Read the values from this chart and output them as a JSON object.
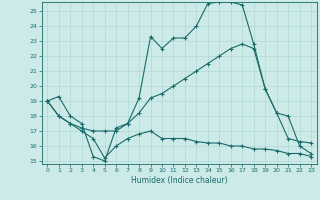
{
  "xlabel": "Humidex (Indice chaleur)",
  "bg_color": "#cceae8",
  "line_color": "#1a6b6b",
  "grid_color": "#b0d8d4",
  "xlim": [
    -0.5,
    23.5
  ],
  "ylim": [
    14.8,
    25.6
  ],
  "yticks": [
    15,
    16,
    17,
    18,
    19,
    20,
    21,
    22,
    23,
    24,
    25
  ],
  "xticks": [
    0,
    1,
    2,
    3,
    4,
    5,
    6,
    7,
    8,
    9,
    10,
    11,
    12,
    13,
    14,
    15,
    16,
    17,
    18,
    19,
    20,
    21,
    22,
    23
  ],
  "series1_x": [
    0,
    1,
    2,
    3,
    4,
    5,
    6,
    7,
    8,
    9,
    10,
    11,
    12,
    13,
    14,
    15,
    16,
    17,
    18,
    19,
    20,
    21,
    22,
    23
  ],
  "series1_y": [
    19.0,
    19.3,
    18.0,
    17.5,
    15.3,
    15.0,
    17.2,
    17.5,
    19.2,
    23.3,
    22.5,
    23.2,
    23.2,
    24.0,
    25.5,
    25.6,
    25.6,
    25.4,
    22.8,
    19.8,
    18.2,
    16.5,
    16.3,
    16.2
  ],
  "series2_x": [
    0,
    1,
    2,
    3,
    4,
    5,
    6,
    7,
    8,
    9,
    10,
    11,
    12,
    13,
    14,
    15,
    16,
    17,
    18,
    19,
    20,
    21,
    22,
    23
  ],
  "series2_y": [
    19.0,
    18.0,
    17.5,
    17.2,
    17.0,
    17.0,
    17.0,
    17.5,
    18.2,
    19.2,
    19.5,
    20.0,
    20.5,
    21.0,
    21.5,
    22.0,
    22.5,
    22.8,
    22.5,
    19.8,
    18.2,
    18.0,
    16.0,
    15.5
  ],
  "series3_x": [
    0,
    1,
    2,
    3,
    4,
    5,
    6,
    7,
    8,
    9,
    10,
    11,
    12,
    13,
    14,
    15,
    16,
    17,
    18,
    19,
    20,
    21,
    22,
    23
  ],
  "series3_y": [
    19.0,
    18.0,
    17.5,
    17.0,
    16.5,
    15.2,
    16.0,
    16.5,
    16.8,
    17.0,
    16.5,
    16.5,
    16.5,
    16.3,
    16.2,
    16.2,
    16.0,
    16.0,
    15.8,
    15.8,
    15.7,
    15.5,
    15.5,
    15.3
  ]
}
